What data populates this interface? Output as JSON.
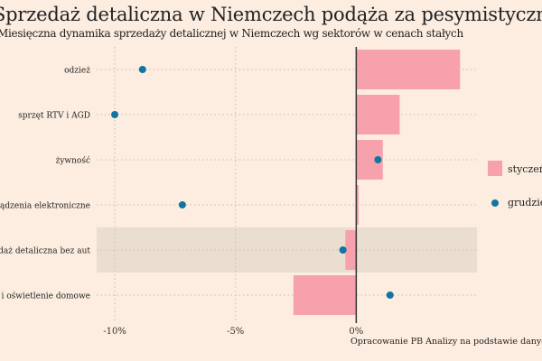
{
  "title": "Sprzedaż detaliczna w Niemczech podąża za pesymistycznymi nastrojami",
  "subtitle": "Miesięczna dynamika sprzedaży detalicznej w Niemczech wg sektorów w cenach stałych",
  "source": "Opracowanie PB Analizy na podstawie danych Destatis",
  "chart_data": {
    "type": "bar",
    "orientation": "horizontal",
    "categories": [
      "odzież",
      "sprzęt RTV i AGD",
      "żywność",
      "urządzenia elektroniczne",
      "sprzedaż detaliczna bez aut",
      "meble i oświetlenie domowe"
    ],
    "highlighted_category": "sprzedaż detaliczna bez aut",
    "series": [
      {
        "name": "styczeń",
        "mark": "bar",
        "color": "#f7a1ad",
        "values": [
          4.3,
          1.8,
          1.1,
          0.1,
          -0.45,
          -2.6
        ]
      },
      {
        "name": "grudzień",
        "mark": "dot",
        "color": "#0f76a1",
        "values": [
          -8.85,
          -10.0,
          0.9,
          -7.2,
          -0.55,
          1.4
        ]
      }
    ],
    "xticks": [
      -10,
      -5,
      0
    ],
    "xtick_labels": [
      "-10%",
      "-5%",
      "0%"
    ],
    "xlim": [
      -10.75,
      5
    ],
    "grid": true,
    "legend_placement": "right",
    "highlight_color": "#e9ded0"
  }
}
